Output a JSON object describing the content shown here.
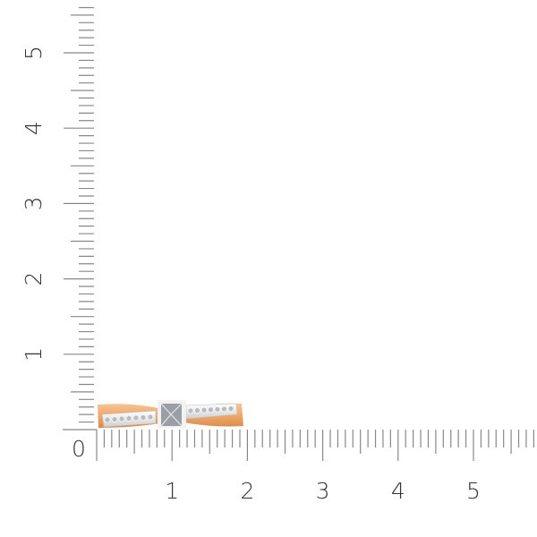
{
  "ruler": {
    "unit": "cm",
    "x_labels": [
      "0",
      "1",
      "2",
      "3",
      "4",
      "5"
    ],
    "y_labels": [
      "1",
      "2",
      "3",
      "4",
      "5"
    ],
    "x_max": 5.8,
    "y_max": 5.6,
    "minor_step": 0.1,
    "tick_color": "#888888"
  },
  "product": {
    "name": "ring-side-view",
    "gold_color": "#f0a86a",
    "white_gold_color": "#e8e8e8"
  }
}
